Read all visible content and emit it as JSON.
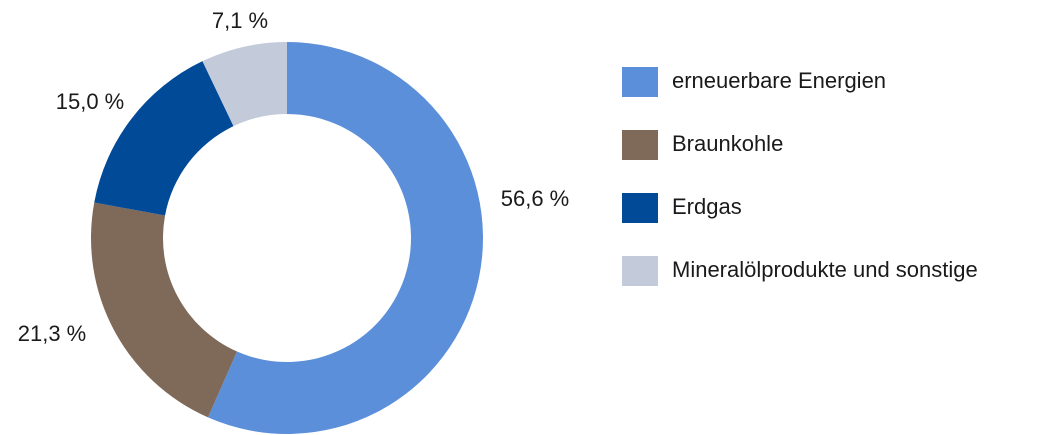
{
  "chart_data": {
    "type": "donut",
    "categories": [
      "erneuerbare Energien",
      "Braunkohle",
      "Erdgas",
      "Mineralölprodukte und sonstige"
    ],
    "values": [
      56.6,
      21.3,
      15.0,
      7.1
    ],
    "value_labels": [
      "56,6 %",
      "21,3 %",
      "15,0 %",
      "7,1 %"
    ],
    "colors": [
      "#5b8fd9",
      "#7f6a5a",
      "#004a97",
      "#c3cbdb"
    ],
    "legend": "right"
  }
}
